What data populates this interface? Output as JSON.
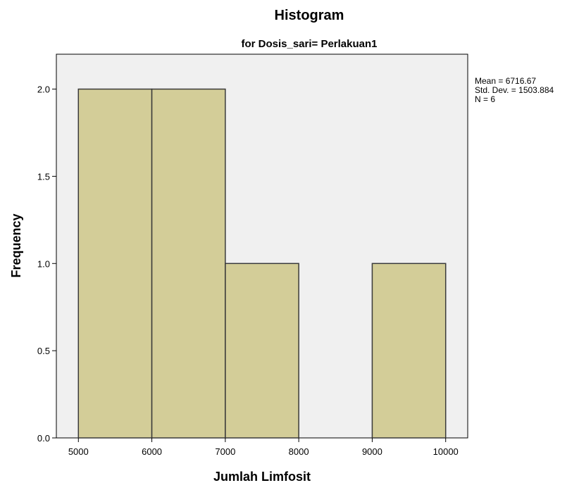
{
  "chart_data": {
    "type": "bar",
    "title": "Histogram",
    "subtitle": "for Dosis_sari= Perlakuan1",
    "xlabel": "Jumlah Limfosit",
    "ylabel": "Frequency",
    "xlim": [
      4700,
      10300
    ],
    "ylim": [
      0,
      2.2
    ],
    "xticks": [
      "5000",
      "6000",
      "7000",
      "8000",
      "9000",
      "10000"
    ],
    "xtick_values": [
      5000,
      6000,
      7000,
      8000,
      9000,
      10000
    ],
    "yticks": [
      "0.0",
      "0.5",
      "1.0",
      "1.5",
      "2.0"
    ],
    "ytick_values": [
      0,
      0.5,
      1.0,
      1.5,
      2.0
    ],
    "bins": [
      {
        "x0": 5000,
        "x1": 6000,
        "value": 2
      },
      {
        "x0": 6000,
        "x1": 7000,
        "value": 2
      },
      {
        "x0": 7000,
        "x1": 8000,
        "value": 1
      },
      {
        "x0": 8000,
        "x1": 9000,
        "value": 0
      },
      {
        "x0": 9000,
        "x1": 10000,
        "value": 1
      }
    ],
    "stats": [
      "Mean = 6716.67",
      "Std. Dev. = 1503.884",
      "N = 6"
    ],
    "colors": {
      "bar_fill": "#d3cd98",
      "bar_stroke": "#3a3a3a",
      "plot_bg": "#f0f0f0",
      "axis": "#000000"
    },
    "grid": false,
    "legend_placement": "right"
  }
}
